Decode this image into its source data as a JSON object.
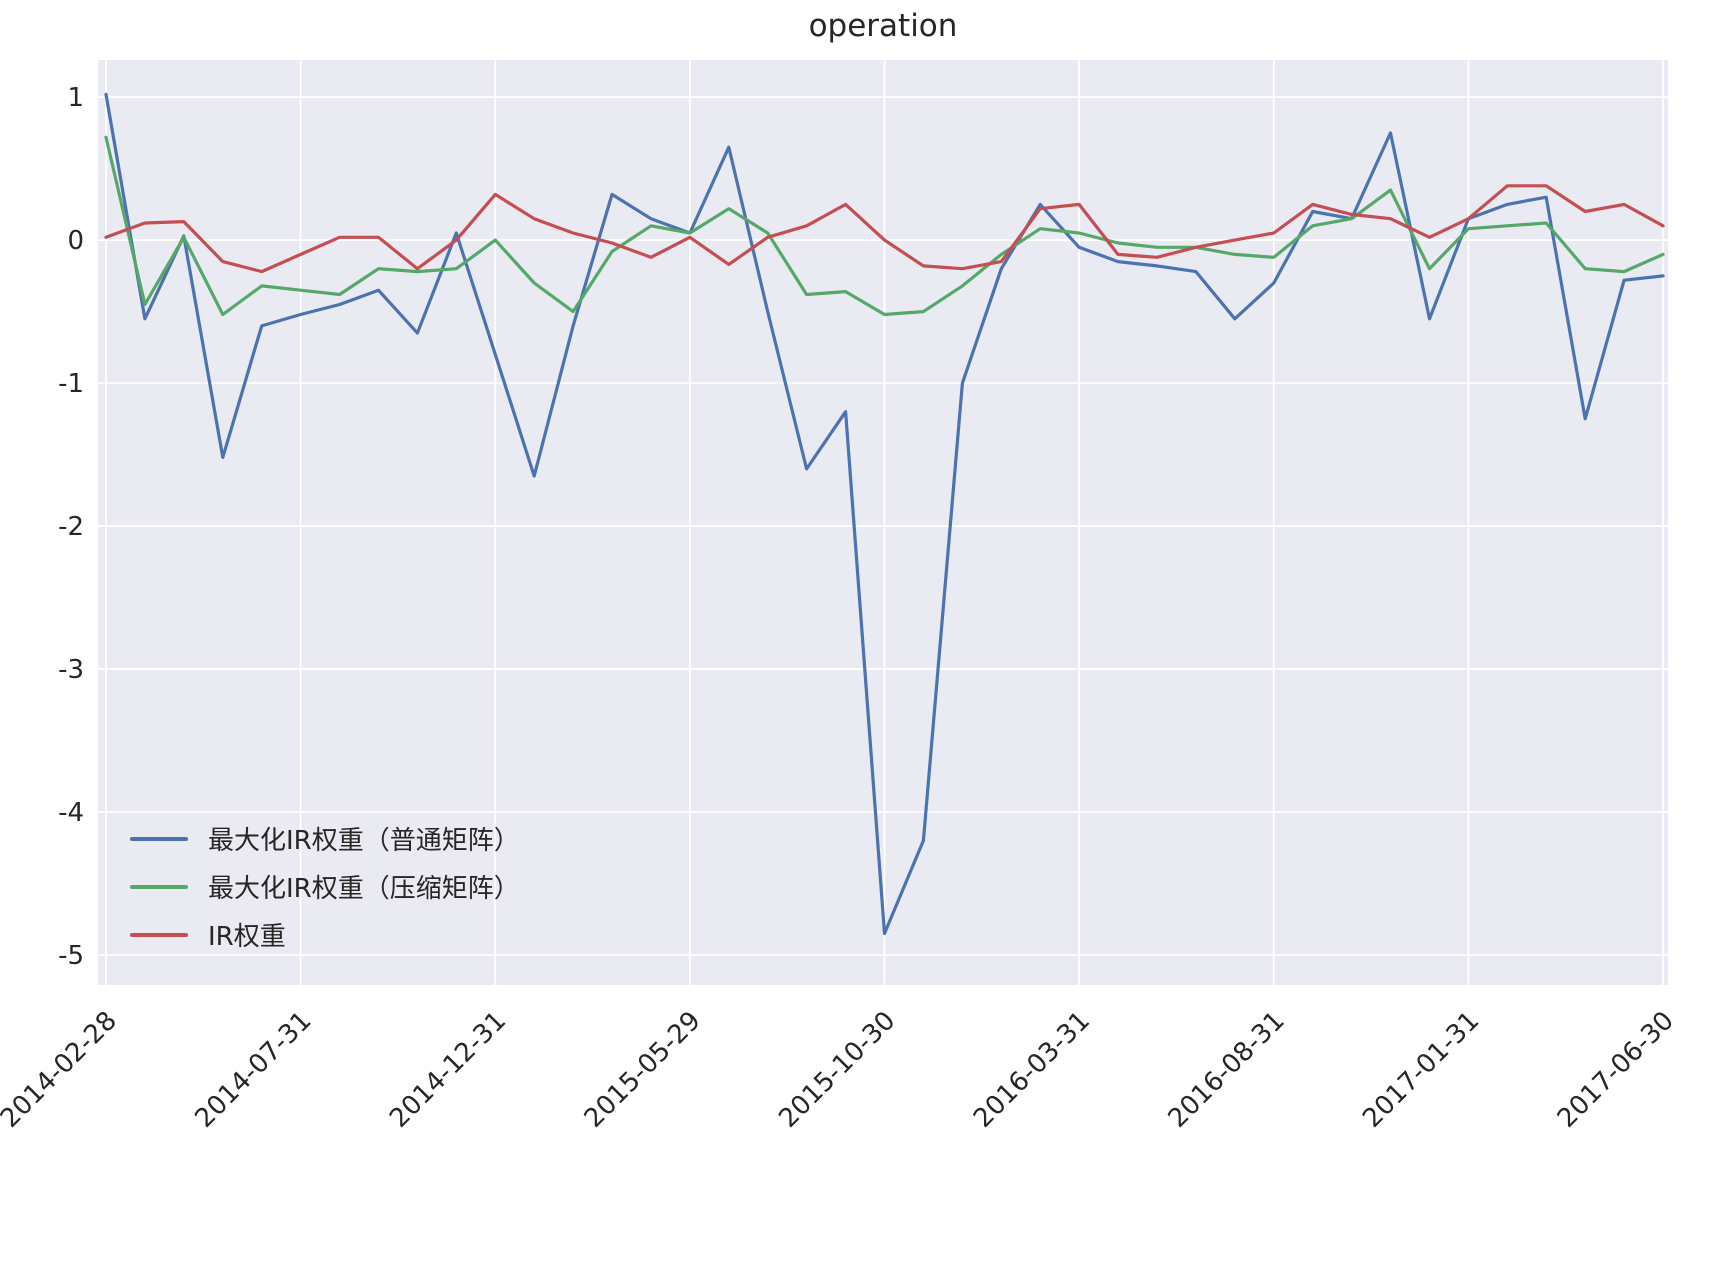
{
  "title": "operation",
  "chart_data": {
    "type": "line",
    "title": "operation",
    "xlabel": "",
    "ylabel": "",
    "grid": true,
    "plot_bg": "#eaeaf2",
    "grid_color": "#ffffff",
    "tick_color": "#262626",
    "legend_position": "lower left",
    "n_points": 41,
    "x_tick_labels": [
      "2014-02-28",
      "2014-07-31",
      "2014-12-31",
      "2015-05-29",
      "2015-10-30",
      "2016-03-31",
      "2016-08-31",
      "2017-01-31",
      "2017-06-30"
    ],
    "x_tick_positions": [
      0,
      5,
      10,
      15,
      20,
      25,
      30,
      35,
      40
    ],
    "y_tick_values": [
      1,
      0,
      -1,
      -2,
      -3,
      -4,
      -5
    ],
    "y_tick_labels": [
      "1",
      "0",
      "-1",
      "-2",
      "-3",
      "-4",
      "-5"
    ],
    "ylim": [
      -5.21,
      1.26
    ],
    "series": [
      {
        "name": "最大化IR权重（普通矩阵）",
        "color": "#4c72b0",
        "values": [
          1.02,
          -0.55,
          0.03,
          -1.52,
          -0.6,
          -0.52,
          -0.45,
          -0.35,
          -0.65,
          0.05,
          -0.8,
          -1.65,
          -0.6,
          0.32,
          0.15,
          0.05,
          0.65,
          -0.5,
          -1.6,
          -1.2,
          -4.85,
          -4.2,
          -1.0,
          -0.2,
          0.25,
          -0.05,
          -0.15,
          -0.18,
          -0.22,
          -0.55,
          -0.3,
          0.2,
          0.15,
          0.75,
          -0.55,
          0.15,
          0.25,
          0.3,
          -1.25,
          -0.28,
          -0.25
        ]
      },
      {
        "name": "最大化IR权重（压缩矩阵）",
        "color": "#55a868",
        "values": [
          0.72,
          -0.45,
          0.02,
          -0.52,
          -0.32,
          -0.35,
          -0.38,
          -0.2,
          -0.22,
          -0.2,
          0.0,
          -0.3,
          -0.5,
          -0.08,
          0.1,
          0.05,
          0.22,
          0.05,
          -0.38,
          -0.36,
          -0.52,
          -0.5,
          -0.32,
          -0.1,
          0.08,
          0.05,
          -0.02,
          -0.05,
          -0.05,
          -0.1,
          -0.12,
          0.1,
          0.15,
          0.35,
          -0.2,
          0.08,
          0.1,
          0.12,
          -0.2,
          -0.22,
          -0.1
        ]
      },
      {
        "name": "IR权重",
        "color": "#c44e52",
        "values": [
          0.02,
          0.12,
          0.13,
          -0.15,
          -0.22,
          -0.1,
          0.02,
          0.02,
          -0.2,
          0.0,
          0.32,
          0.15,
          0.05,
          -0.02,
          -0.12,
          0.02,
          -0.17,
          0.02,
          0.1,
          0.25,
          0.0,
          -0.18,
          -0.2,
          -0.15,
          0.22,
          0.25,
          -0.1,
          -0.12,
          -0.05,
          0.0,
          0.05,
          0.25,
          0.18,
          0.15,
          0.02,
          0.15,
          0.38,
          0.38,
          0.2,
          0.25,
          0.1
        ]
      }
    ]
  }
}
